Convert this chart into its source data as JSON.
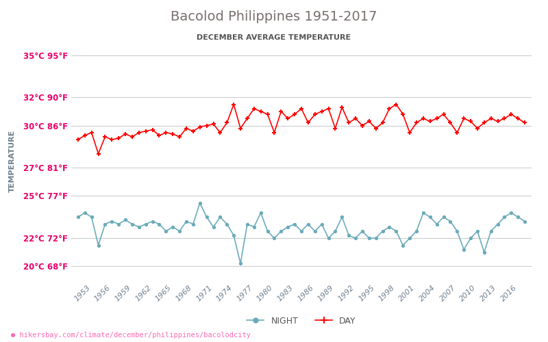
{
  "title": "Bacolod Philippines 1951-2017",
  "subtitle": "DECEMBER AVERAGE TEMPERATURE",
  "ylabel": "TEMPERATURE",
  "xlabel_url": "hikersbay.com/climate/december/philippines/bacolodcity",
  "years": [
    1951,
    1952,
    1953,
    1954,
    1955,
    1956,
    1957,
    1958,
    1959,
    1960,
    1961,
    1962,
    1963,
    1964,
    1965,
    1966,
    1967,
    1968,
    1969,
    1970,
    1971,
    1972,
    1973,
    1974,
    1975,
    1976,
    1977,
    1978,
    1979,
    1980,
    1981,
    1982,
    1983,
    1984,
    1985,
    1986,
    1987,
    1988,
    1989,
    1990,
    1991,
    1992,
    1993,
    1994,
    1995,
    1996,
    1997,
    1998,
    1999,
    2000,
    2001,
    2002,
    2003,
    2004,
    2005,
    2006,
    2007,
    2008,
    2009,
    2010,
    2011,
    2012,
    2013,
    2014,
    2015,
    2016,
    2017
  ],
  "day_temps": [
    29.0,
    29.3,
    29.5,
    28.0,
    29.2,
    29.0,
    29.1,
    29.4,
    29.2,
    29.5,
    29.6,
    29.7,
    29.3,
    29.5,
    29.4,
    29.2,
    29.8,
    29.6,
    29.9,
    30.0,
    30.1,
    29.5,
    30.2,
    31.5,
    29.8,
    30.5,
    31.2,
    31.0,
    30.8,
    29.5,
    31.0,
    30.5,
    30.8,
    31.2,
    30.2,
    30.8,
    31.0,
    31.2,
    29.8,
    31.3,
    30.2,
    30.5,
    30.0,
    30.3,
    29.8,
    30.2,
    31.2,
    31.5,
    30.8,
    29.5,
    30.2,
    30.5,
    30.3,
    30.5,
    30.8,
    30.2,
    29.5,
    30.5,
    30.3,
    29.8,
    30.2,
    30.5,
    30.3,
    30.5,
    30.8,
    30.5,
    30.2
  ],
  "night_temps": [
    23.5,
    23.8,
    23.5,
    21.5,
    23.0,
    23.2,
    23.0,
    23.3,
    23.0,
    22.8,
    23.0,
    23.2,
    23.0,
    22.5,
    22.8,
    22.5,
    23.2,
    23.0,
    24.5,
    23.5,
    22.8,
    23.5,
    23.0,
    22.2,
    20.2,
    23.0,
    22.8,
    23.8,
    22.5,
    22.0,
    22.5,
    22.8,
    23.0,
    22.5,
    23.0,
    22.5,
    23.0,
    22.0,
    22.5,
    23.5,
    22.2,
    22.0,
    22.5,
    22.0,
    22.0,
    22.5,
    22.8,
    22.5,
    21.5,
    22.0,
    22.5,
    23.8,
    23.5,
    23.0,
    23.5,
    23.2,
    22.5,
    21.2,
    22.0,
    22.5,
    21.0,
    22.5,
    23.0,
    23.5,
    23.8,
    23.5,
    23.2
  ],
  "day_color": "#ff0000",
  "night_color": "#6aabba",
  "marker_day": "P",
  "marker_night": "o",
  "yticks_c": [
    20,
    22,
    25,
    27,
    30,
    32,
    35
  ],
  "yticks_f": [
    68,
    72,
    77,
    81,
    86,
    90,
    95
  ],
  "ylim": [
    19.0,
    36.0
  ],
  "title_color": "#7a6e6e",
  "subtitle_color": "#555555",
  "tick_color": "#e8006a",
  "ylabel_color": "#6e7f8a",
  "xtick_color": "#6e8090",
  "bg_color": "#ffffff",
  "grid_color": "#cccccc",
  "legend_night_label": "NIGHT",
  "legend_day_label": "DAY"
}
